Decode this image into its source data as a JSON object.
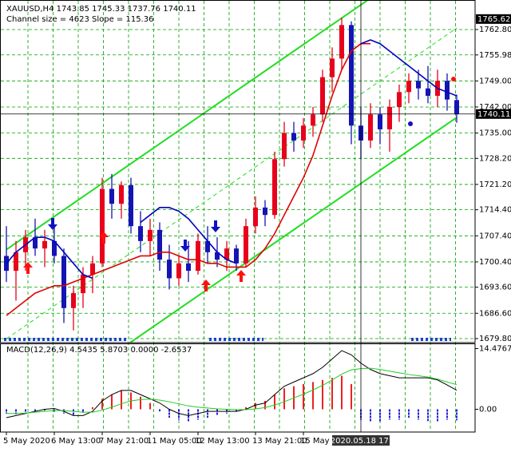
{
  "chart_data": [
    {
      "type": "candlestick",
      "title": "XAUUSD,H4 1743.85 1745.33 1737.76 1740.11",
      "subtitle": "Channel size = 4623 Slope = 115.36",
      "categories": [
        "5 May 2020",
        null,
        null,
        null,
        null,
        "6 May 13:00",
        null,
        null,
        null,
        null,
        "7 May 21:00",
        null,
        null,
        null,
        null,
        "11 May 05:00",
        null,
        null,
        null,
        null,
        "12 May 13:00",
        null,
        null,
        null,
        null,
        null,
        "13 May 21:00",
        null,
        null,
        null,
        null,
        "15 May",
        null,
        null,
        null,
        null,
        null,
        "2020.05.18 17:",
        null,
        null,
        null,
        null,
        null,
        null,
        null,
        null,
        null,
        null
      ],
      "open": [
        1702,
        1698,
        1703,
        1707,
        1704,
        1706,
        1702,
        1688,
        1692,
        1697,
        1700,
        1720,
        1716,
        1721,
        1710,
        1706,
        1709,
        1701,
        1696,
        1700,
        1698,
        1706,
        1703,
        1701,
        1704,
        1700,
        1710,
        1715,
        1713,
        1728,
        1735,
        1733,
        1737,
        1740,
        1750,
        1755,
        1764,
        1737,
        1733,
        1740,
        1736,
        1742,
        1746,
        1749,
        1747,
        1745,
        1749,
        1743.85
      ],
      "high": [
        1710,
        1706,
        1709,
        1712,
        1709,
        1710,
        1704,
        1694,
        1699,
        1702,
        1723,
        1724,
        1722,
        1723,
        1714,
        1712,
        1711,
        1705,
        1702,
        1706,
        1708,
        1710,
        1707,
        1706,
        1705,
        1712,
        1718,
        1717,
        1730,
        1738,
        1738,
        1739,
        1742,
        1752,
        1758,
        1766,
        1765,
        1742,
        1743,
        1742,
        1744,
        1748,
        1751,
        1752,
        1753,
        1752,
        1751,
        1745.33
      ],
      "low": [
        1695,
        1690,
        1698,
        1702,
        1699,
        1700,
        1684,
        1682,
        1688,
        1692,
        1699,
        1712,
        1712,
        1708,
        1703,
        1702,
        1698,
        1693,
        1694,
        1695,
        1697,
        1700,
        1699,
        1698,
        1698,
        1699,
        1708,
        1710,
        1712,
        1726,
        1730,
        1731,
        1734,
        1738,
        1746,
        1752,
        1732,
        1728,
        1731,
        1732,
        1730,
        1738,
        1743,
        1744,
        1743,
        1742,
        1741,
        1737.76
      ],
      "close": [
        1698,
        1703,
        1707,
        1704,
        1706,
        1702,
        1688,
        1692,
        1697,
        1700,
        1720,
        1716,
        1721,
        1710,
        1706,
        1709,
        1701,
        1696,
        1700,
        1698,
        1706,
        1703,
        1701,
        1704,
        1700,
        1710,
        1715,
        1713,
        1728,
        1735,
        1733,
        1737,
        1740,
        1750,
        1755,
        1764,
        1737,
        1733,
        1740,
        1736,
        1742,
        1746,
        1749,
        1747,
        1745,
        1749,
        1744,
        1740.11
      ],
      "up_color": "#e8001c",
      "down_color": "#1414b4",
      "lines": [
        {
          "color": "#e00000",
          "values": [
            1686,
            1688,
            1690,
            1692,
            1693,
            1694,
            1694,
            1695,
            1696,
            1697,
            1698,
            1699,
            1700,
            1701,
            1702,
            1702,
            1703,
            1703,
            1702,
            1701,
            1701,
            1700,
            1700,
            1699,
            1699,
            1699,
            1701,
            1704,
            1708,
            1713,
            1718,
            1723,
            1729,
            1737,
            1745,
            1752,
            1757,
            1759,
            1759,
            null,
            null,
            null,
            null,
            null,
            null,
            null,
            null,
            null
          ]
        },
        {
          "color": "#0000c0",
          "values": [
            1700,
            1703,
            1705,
            1707,
            1707,
            1706,
            1703,
            1700,
            1697,
            1696,
            null,
            null,
            null,
            null,
            1711,
            1713,
            1715,
            1715,
            1714,
            1712,
            1709,
            1706,
            1703,
            1701,
            1700,
            null,
            null,
            null,
            null,
            null,
            null,
            null,
            null,
            null,
            null,
            null,
            null,
            1759,
            1760,
            1759,
            1757,
            1755,
            1753,
            1751,
            1749,
            1747,
            1746,
            1745
          ]
        }
      ],
      "channel": {
        "color": "#22dd22",
        "upper": [
          1703.7,
          1787.2
        ],
        "middle": [
          1679.75,
          1763.2
        ],
        "lower": [
          1655.8,
          1739.2
        ]
      },
      "ylim": [
        1678.94,
        1770.73
      ],
      "yticks": [
        {
          "value": 1762.8,
          "label": "1762.80"
        },
        1755.98,
        {
          "value": 1749,
          "label": "1749.00"
        },
        {
          "value": 1742,
          "label": "1742.00"
        },
        {
          "value": 1735,
          "label": "1735.00"
        },
        {
          "value": 1728.2,
          "label": "1728.20"
        },
        {
          "value": 1721.2,
          "label": "1721.20"
        },
        {
          "value": 1714.4,
          "label": "1714.40"
        },
        {
          "value": 1707.4,
          "label": "1707.40"
        },
        {
          "value": 1700.4,
          "label": "1700.40"
        },
        {
          "value": 1693.6,
          "label": "1693.60"
        },
        {
          "value": 1686.6,
          "label": "1686.60"
        },
        {
          "value": 1679.8,
          "label": "1679.80"
        }
      ],
      "grid": true,
      "grid_color": "#00a000",
      "high_price": 1765.62,
      "last_price": 1740.11,
      "crosshair_category": 37
    },
    {
      "type": "macd",
      "title": "MACD(12,26,9) 4.5435 5.8703 0.0000 -2.6537",
      "histogram": [
        -1,
        -1.2,
        -0.8,
        -0.5,
        -0.3,
        -0.6,
        -1,
        -1.5,
        -0.8,
        0.5,
        2.5,
        3.5,
        4.5,
        4,
        3,
        1.5,
        -0.5,
        -2,
        -2.5,
        -3,
        -2.5,
        -2,
        -1.5,
        -1,
        -0.5,
        0.5,
        1.5,
        2,
        3.5,
        5,
        5.5,
        6,
        6.5,
        7,
        7.5,
        8,
        6,
        -2.5,
        -3,
        -3,
        -2.5,
        -2.5,
        -2,
        -2.5,
        -2.8,
        -3,
        -2.5,
        -2.65
      ],
      "pos_color": "#ee2020",
      "neg_color": "#2020dd",
      "series": [
        {
          "color": "#000000",
          "values": [
            -2,
            -1.5,
            -1,
            -0.5,
            0,
            0.2,
            -0.5,
            -1.5,
            -1.5,
            -0.5,
            2,
            3.5,
            4.5,
            4.5,
            3.5,
            2.5,
            1.5,
            0,
            -1,
            -1.5,
            -1,
            -0.5,
            -0.5,
            -0.5,
            -0.5,
            0,
            1,
            1.5,
            3.5,
            5.5,
            6.5,
            7.5,
            8.5,
            10,
            12,
            14,
            13,
            11,
            9.5,
            8.5,
            8,
            7.5,
            7.5,
            7.5,
            7.5,
            7,
            5.8,
            4.54
          ]
        },
        {
          "color": "#22cc22",
          "values": [
            -1,
            -1,
            -0.9,
            -0.7,
            -0.5,
            -0.3,
            -0.3,
            -0.5,
            -0.7,
            -0.7,
            -0.2,
            0.5,
            1.3,
            2,
            2.3,
            2.4,
            2.2,
            1.8,
            1.3,
            0.8,
            0.5,
            0.3,
            0.1,
            0,
            -0.1,
            -0.1,
            0.1,
            0.4,
            1,
            1.8,
            2.7,
            3.6,
            4.6,
            5.7,
            7,
            8.4,
            9.4,
            9.7,
            9.8,
            9.5,
            9.1,
            8.7,
            8.3,
            8,
            7.7,
            7.2,
            6.5,
            5.87
          ]
        }
      ],
      "ylim": [
        -5.43,
        15.72
      ],
      "yticks": [
        14.4767,
        {
          "value": 0,
          "label": "0.00"
        }
      ]
    }
  ]
}
